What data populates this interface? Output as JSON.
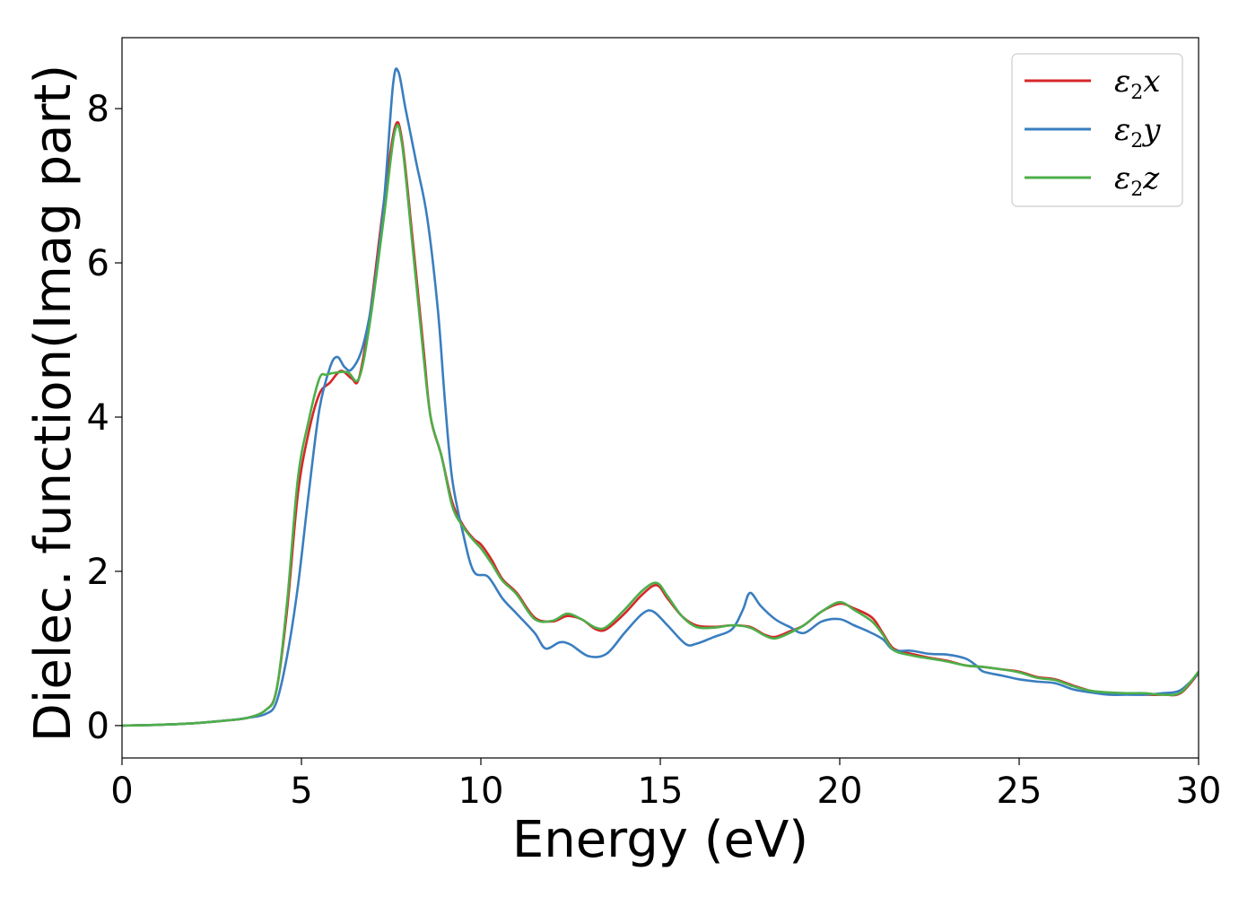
{
  "chart_data": {
    "type": "line",
    "title": "",
    "xlabel": "Energy (eV)",
    "ylabel": "Dielec. function(Imag part)",
    "xlim": [
      0,
      30
    ],
    "ylim": [
      -0.42,
      8.92
    ],
    "xticks": [
      0,
      5,
      10,
      15,
      20,
      25,
      30
    ],
    "yticks": [
      0,
      2,
      4,
      6,
      8
    ],
    "grid": false,
    "legend_position": "top-right",
    "series": [
      {
        "name": "ε2x",
        "legend_main": "ε",
        "legend_sub": "2",
        "legend_tail": "x",
        "color": "#d62728",
        "points": [
          [
            0,
            0
          ],
          [
            1,
            0.01
          ],
          [
            2,
            0.03
          ],
          [
            3,
            0.07
          ],
          [
            3.5,
            0.1
          ],
          [
            4,
            0.2
          ],
          [
            4.3,
            0.45
          ],
          [
            4.6,
            1.5
          ],
          [
            4.9,
            3.0
          ],
          [
            5.2,
            3.8
          ],
          [
            5.5,
            4.3
          ],
          [
            5.8,
            4.45
          ],
          [
            6.1,
            4.6
          ],
          [
            6.4,
            4.5
          ],
          [
            6.6,
            4.5
          ],
          [
            6.9,
            5.3
          ],
          [
            7.3,
            6.8
          ],
          [
            7.6,
            7.75
          ],
          [
            7.8,
            7.6
          ],
          [
            8.1,
            6.3
          ],
          [
            8.4,
            4.9
          ],
          [
            8.6,
            4.0
          ],
          [
            8.9,
            3.5
          ],
          [
            9.2,
            2.9
          ],
          [
            9.5,
            2.6
          ],
          [
            9.8,
            2.42
          ],
          [
            10,
            2.35
          ],
          [
            10.3,
            2.15
          ],
          [
            10.6,
            1.9
          ],
          [
            11,
            1.72
          ],
          [
            11.5,
            1.4
          ],
          [
            12,
            1.35
          ],
          [
            12.4,
            1.42
          ],
          [
            12.8,
            1.38
          ],
          [
            13.2,
            1.25
          ],
          [
            13.5,
            1.25
          ],
          [
            14,
            1.45
          ],
          [
            14.5,
            1.7
          ],
          [
            14.9,
            1.82
          ],
          [
            15.2,
            1.65
          ],
          [
            15.6,
            1.42
          ],
          [
            16,
            1.3
          ],
          [
            16.5,
            1.28
          ],
          [
            17,
            1.3
          ],
          [
            17.5,
            1.28
          ],
          [
            17.9,
            1.18
          ],
          [
            18.2,
            1.15
          ],
          [
            18.6,
            1.22
          ],
          [
            19,
            1.3
          ],
          [
            19.5,
            1.48
          ],
          [
            20,
            1.58
          ],
          [
            20.4,
            1.52
          ],
          [
            20.9,
            1.4
          ],
          [
            21.2,
            1.2
          ],
          [
            21.5,
            1.0
          ],
          [
            22,
            0.93
          ],
          [
            22.5,
            0.88
          ],
          [
            23,
            0.84
          ],
          [
            23.5,
            0.78
          ],
          [
            24,
            0.76
          ],
          [
            24.5,
            0.73
          ],
          [
            25,
            0.7
          ],
          [
            25.5,
            0.63
          ],
          [
            26,
            0.6
          ],
          [
            26.5,
            0.52
          ],
          [
            27,
            0.45
          ],
          [
            27.5,
            0.42
          ],
          [
            28,
            0.41
          ],
          [
            28.5,
            0.4
          ],
          [
            29,
            0.4
          ],
          [
            29.5,
            0.42
          ],
          [
            30,
            0.68
          ]
        ]
      },
      {
        "name": "ε2y",
        "legend_main": "ε",
        "legend_sub": "2",
        "legend_tail": "y",
        "color": "#3a7ebf",
        "points": [
          [
            0,
            0
          ],
          [
            1,
            0.01
          ],
          [
            2,
            0.03
          ],
          [
            3,
            0.07
          ],
          [
            3.5,
            0.1
          ],
          [
            4,
            0.15
          ],
          [
            4.3,
            0.3
          ],
          [
            4.6,
            0.9
          ],
          [
            4.9,
            1.8
          ],
          [
            5.2,
            3.0
          ],
          [
            5.5,
            4.1
          ],
          [
            5.8,
            4.65
          ],
          [
            6,
            4.78
          ],
          [
            6.2,
            4.65
          ],
          [
            6.4,
            4.62
          ],
          [
            6.7,
            4.9
          ],
          [
            7.0,
            5.6
          ],
          [
            7.3,
            6.8
          ],
          [
            7.55,
            8.3
          ],
          [
            7.7,
            8.48
          ],
          [
            7.9,
            8.0
          ],
          [
            8.2,
            7.3
          ],
          [
            8.5,
            6.6
          ],
          [
            8.8,
            5.4
          ],
          [
            9.0,
            4.2
          ],
          [
            9.2,
            3.2
          ],
          [
            9.5,
            2.5
          ],
          [
            9.8,
            2.0
          ],
          [
            10.2,
            1.93
          ],
          [
            10.6,
            1.65
          ],
          [
            11,
            1.45
          ],
          [
            11.5,
            1.2
          ],
          [
            11.8,
            1.0
          ],
          [
            12.2,
            1.08
          ],
          [
            12.5,
            1.05
          ],
          [
            13,
            0.9
          ],
          [
            13.5,
            0.93
          ],
          [
            14,
            1.2
          ],
          [
            14.5,
            1.45
          ],
          [
            14.8,
            1.48
          ],
          [
            15.2,
            1.3
          ],
          [
            15.7,
            1.06
          ],
          [
            16,
            1.06
          ],
          [
            16.5,
            1.15
          ],
          [
            17,
            1.25
          ],
          [
            17.3,
            1.5
          ],
          [
            17.5,
            1.72
          ],
          [
            17.8,
            1.55
          ],
          [
            18.2,
            1.38
          ],
          [
            18.6,
            1.28
          ],
          [
            19,
            1.2
          ],
          [
            19.5,
            1.35
          ],
          [
            20,
            1.38
          ],
          [
            20.4,
            1.3
          ],
          [
            20.8,
            1.22
          ],
          [
            21.2,
            1.12
          ],
          [
            21.5,
            0.98
          ],
          [
            22,
            0.97
          ],
          [
            22.5,
            0.93
          ],
          [
            23,
            0.92
          ],
          [
            23.5,
            0.87
          ],
          [
            23.8,
            0.78
          ],
          [
            24,
            0.7
          ],
          [
            24.5,
            0.65
          ],
          [
            25,
            0.6
          ],
          [
            25.5,
            0.57
          ],
          [
            26,
            0.55
          ],
          [
            26.5,
            0.47
          ],
          [
            27,
            0.43
          ],
          [
            27.5,
            0.4
          ],
          [
            28,
            0.4
          ],
          [
            28.5,
            0.4
          ],
          [
            29,
            0.42
          ],
          [
            29.5,
            0.46
          ],
          [
            30,
            0.68
          ]
        ]
      },
      {
        "name": "ε2z",
        "legend_main": "ε",
        "legend_sub": "2",
        "legend_tail": "z",
        "color": "#4daf4a",
        "points": [
          [
            0,
            0
          ],
          [
            1,
            0.01
          ],
          [
            2,
            0.03
          ],
          [
            3,
            0.07
          ],
          [
            3.5,
            0.1
          ],
          [
            4,
            0.2
          ],
          [
            4.3,
            0.45
          ],
          [
            4.6,
            1.6
          ],
          [
            4.9,
            3.2
          ],
          [
            5.2,
            3.95
          ],
          [
            5.5,
            4.5
          ],
          [
            5.7,
            4.55
          ],
          [
            6.0,
            4.58
          ],
          [
            6.3,
            4.58
          ],
          [
            6.6,
            4.5
          ],
          [
            6.9,
            5.2
          ],
          [
            7.3,
            6.6
          ],
          [
            7.6,
            7.7
          ],
          [
            7.8,
            7.55
          ],
          [
            8.1,
            6.2
          ],
          [
            8.4,
            4.8
          ],
          [
            8.6,
            4.0
          ],
          [
            8.9,
            3.5
          ],
          [
            9.2,
            2.85
          ],
          [
            9.5,
            2.58
          ],
          [
            9.8,
            2.4
          ],
          [
            10,
            2.3
          ],
          [
            10.3,
            2.1
          ],
          [
            10.6,
            1.88
          ],
          [
            11,
            1.7
          ],
          [
            11.5,
            1.38
          ],
          [
            12,
            1.36
          ],
          [
            12.4,
            1.45
          ],
          [
            12.8,
            1.38
          ],
          [
            13.2,
            1.27
          ],
          [
            13.5,
            1.28
          ],
          [
            14,
            1.5
          ],
          [
            14.5,
            1.75
          ],
          [
            14.9,
            1.85
          ],
          [
            15.2,
            1.68
          ],
          [
            15.6,
            1.42
          ],
          [
            16,
            1.28
          ],
          [
            16.5,
            1.27
          ],
          [
            17,
            1.3
          ],
          [
            17.5,
            1.27
          ],
          [
            17.9,
            1.17
          ],
          [
            18.2,
            1.13
          ],
          [
            18.6,
            1.2
          ],
          [
            19,
            1.3
          ],
          [
            19.5,
            1.48
          ],
          [
            20,
            1.6
          ],
          [
            20.4,
            1.5
          ],
          [
            20.9,
            1.35
          ],
          [
            21.2,
            1.18
          ],
          [
            21.5,
            0.98
          ],
          [
            22,
            0.91
          ],
          [
            22.5,
            0.87
          ],
          [
            23,
            0.83
          ],
          [
            23.5,
            0.78
          ],
          [
            24,
            0.76
          ],
          [
            24.5,
            0.73
          ],
          [
            25,
            0.69
          ],
          [
            25.5,
            0.62
          ],
          [
            26,
            0.59
          ],
          [
            26.5,
            0.51
          ],
          [
            27,
            0.45
          ],
          [
            27.5,
            0.43
          ],
          [
            28,
            0.42
          ],
          [
            28.5,
            0.42
          ],
          [
            29,
            0.4
          ],
          [
            29.5,
            0.43
          ],
          [
            30,
            0.7
          ]
        ]
      }
    ]
  }
}
